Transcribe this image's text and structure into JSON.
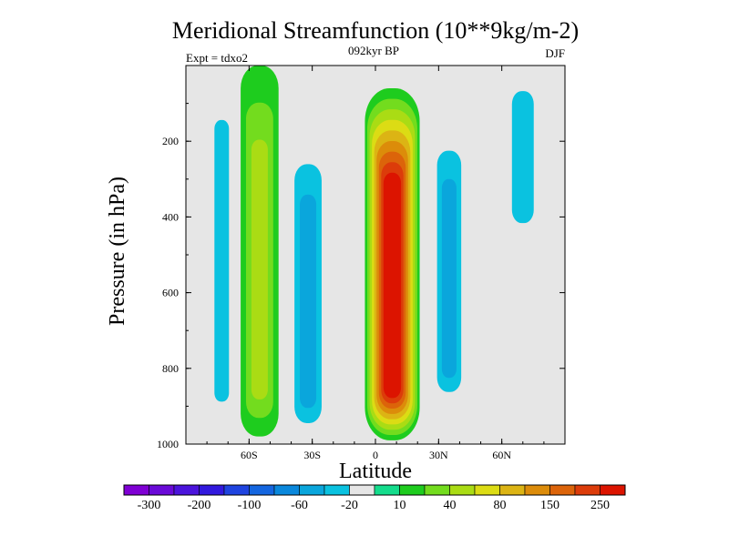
{
  "chart_data": {
    "type": "heatmap",
    "title": "Meridional Streamfunction (10**9kg/m-2)",
    "subtitle_center": "092kyr BP",
    "subtitle_left": "Expt = tdxo2",
    "subtitle_right": "DJF",
    "xlabel": "Latitude",
    "ylabel": "Pressure (in hPa)",
    "x_range": [
      -90,
      90
    ],
    "y_range": [
      0,
      1000
    ],
    "y_inverted": true,
    "grid": false,
    "missing_color": "#e6e6e6",
    "x_ticks": [
      {
        "value": -60,
        "label": "60S"
      },
      {
        "value": -30,
        "label": "30S"
      },
      {
        "value": 0,
        "label": "0"
      },
      {
        "value": 30,
        "label": "30N"
      },
      {
        "value": 60,
        "label": "60N"
      }
    ],
    "y_ticks": [
      {
        "value": 200,
        "label": "200"
      },
      {
        "value": 400,
        "label": "400"
      },
      {
        "value": 600,
        "label": "600"
      },
      {
        "value": 800,
        "label": "800"
      },
      {
        "value": 1000,
        "label": "1000"
      }
    ],
    "colorbar": {
      "placement": "bottom",
      "colors": [
        "#7f00d4",
        "#6a0ad8",
        "#4b14dc",
        "#3219de",
        "#1f44e0",
        "#1466e0",
        "#0a88dc",
        "#0aa6dc",
        "#0ac2e0",
        "#e6e6e6",
        "#14dc8c",
        "#1ecc1e",
        "#73dc1e",
        "#aadc14",
        "#dcdc14",
        "#dcb414",
        "#dc8c0a",
        "#dc640a",
        "#dc3c0a",
        "#dc1400"
      ],
      "labels": [
        "-300",
        "-200",
        "-100",
        "-60",
        "-20",
        "10",
        "40",
        "80",
        "150",
        "250"
      ]
    },
    "levels": [
      -400,
      -300,
      -250,
      -200,
      -150,
      -100,
      -80,
      -60,
      -40,
      -20,
      -10,
      10,
      20,
      40,
      60,
      80,
      100,
      150,
      200,
      250,
      300
    ],
    "features": [
      {
        "lat": -73,
        "p_top": 0,
        "p_bottom": 960,
        "half_width": 6,
        "value": -20
      },
      {
        "lat": -55,
        "p_top": 0,
        "p_bottom": 980,
        "half_width": 9,
        "value": 40
      },
      {
        "lat": -32,
        "p_top": 180,
        "p_bottom": 985,
        "half_width": 9,
        "value": -40
      },
      {
        "lat": 8,
        "p_top": 60,
        "p_bottom": 990,
        "half_width": 13,
        "value": 300
      },
      {
        "lat": 35,
        "p_top": 150,
        "p_bottom": 900,
        "half_width": 8,
        "value": -40
      },
      {
        "lat": 70,
        "p_top": 0,
        "p_bottom": 450,
        "half_width": 9,
        "value": -20
      }
    ]
  }
}
